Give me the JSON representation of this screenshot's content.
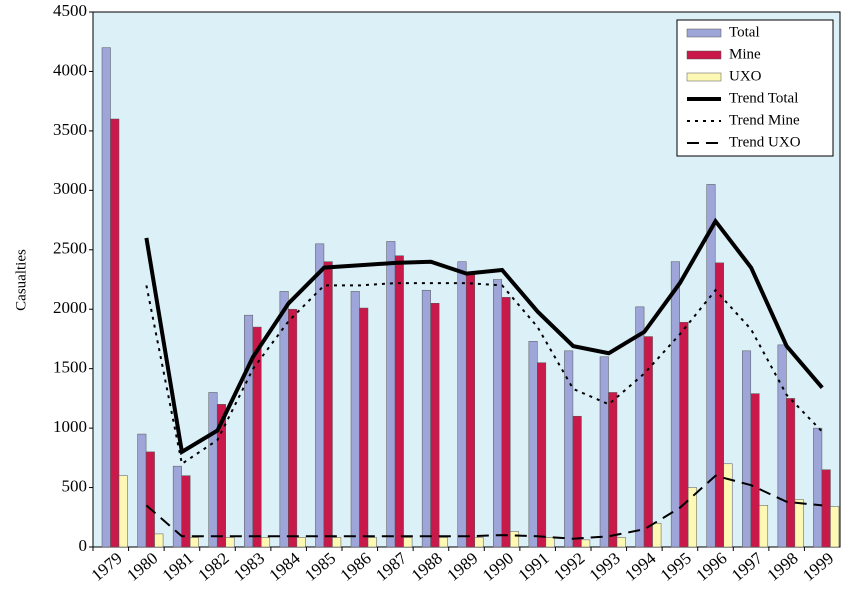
{
  "chart_data": {
    "type": "combo",
    "y_label": "Casualties",
    "categories": [
      "1979",
      "1980",
      "1981",
      "1982",
      "1983",
      "1984",
      "1985",
      "1986",
      "1987",
      "1988",
      "1989",
      "1990",
      "1991",
      "1992",
      "1993",
      "1994",
      "1995",
      "1996",
      "1997",
      "1998",
      "1999"
    ],
    "series": [
      {
        "name": "Total",
        "type": "bar",
        "color": "#9ea5d8",
        "values": [
          4200,
          950,
          680,
          1300,
          1950,
          2150,
          2550,
          2150,
          2570,
          2160,
          2400,
          2250,
          1730,
          1650,
          1600,
          2020,
          2400,
          3050,
          1650,
          1700,
          1000
        ]
      },
      {
        "name": "Mine",
        "type": "bar",
        "color": "#c8194a",
        "values": [
          3600,
          800,
          600,
          1200,
          1850,
          2000,
          2400,
          2010,
          2450,
          2050,
          2300,
          2100,
          1550,
          1100,
          1300,
          1770,
          1890,
          2390,
          1290,
          1250,
          650
        ]
      },
      {
        "name": "UXO",
        "type": "bar",
        "color": "#fdf8b4",
        "values": [
          600,
          110,
          80,
          80,
          80,
          80,
          80,
          80,
          80,
          80,
          80,
          130,
          80,
          60,
          80,
          200,
          500,
          700,
          350,
          400,
          340
        ]
      },
      {
        "name": "Trend Total",
        "type": "line",
        "dash": "solid",
        "color": "#000000",
        "values": [
          null,
          2600,
          800,
          980,
          1600,
          2050,
          2350,
          2370,
          2390,
          2400,
          2300,
          2330,
          1980,
          1690,
          1630,
          1810,
          2220,
          2740,
          2350,
          1690,
          1340
        ]
      },
      {
        "name": "Trend Mine",
        "type": "line",
        "dash": "dotted",
        "color": "#000000",
        "values": [
          null,
          2200,
          700,
          900,
          1500,
          1900,
          2200,
          2200,
          2220,
          2220,
          2220,
          2200,
          1850,
          1330,
          1200,
          1460,
          1790,
          2160,
          1830,
          1280,
          970
        ]
      },
      {
        "name": "Trend UXO",
        "type": "line",
        "dash": "dashed",
        "color": "#000000",
        "values": [
          null,
          350,
          90,
          90,
          90,
          90,
          90,
          90,
          90,
          90,
          90,
          100,
          90,
          70,
          90,
          150,
          330,
          600,
          520,
          380,
          350
        ]
      }
    ],
    "ylim": [
      0,
      4500
    ],
    "yticks": [
      0,
      500,
      1000,
      1500,
      2000,
      2500,
      3000,
      3500,
      4000,
      4500
    ],
    "grid": false,
    "legend": "top-right",
    "plot_background": "#dcf0f8"
  }
}
